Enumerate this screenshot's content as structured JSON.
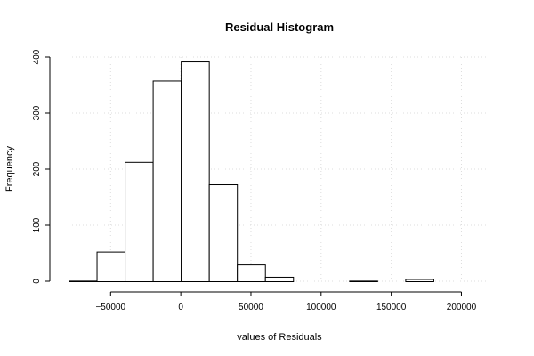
{
  "chart_data": {
    "type": "bar",
    "title": "Residual Histogram",
    "xlabel": "values of Residuals",
    "ylabel": "Frequency",
    "bin_edges": [
      -80000,
      -60000,
      -40000,
      -20000,
      0,
      20000,
      40000,
      60000,
      80000,
      100000,
      120000,
      140000,
      160000,
      180000,
      200000,
      220000
    ],
    "values": [
      1,
      53,
      213,
      358,
      392,
      173,
      30,
      8,
      0,
      0,
      1,
      0,
      4,
      0,
      0
    ],
    "xlim": [
      -80000,
      220000
    ],
    "ylim": [
      0,
      400
    ],
    "x_ticks": [
      -50000,
      0,
      50000,
      100000,
      150000,
      200000
    ],
    "x_tick_labels": [
      "−50000",
      "0",
      "50000",
      "100000",
      "150000",
      "200000"
    ],
    "y_ticks": [
      0,
      100,
      200,
      300,
      400
    ],
    "y_tick_labels": [
      "0",
      "100",
      "200",
      "300",
      "400"
    ],
    "grid": true,
    "colors": {
      "bar_fill": "#ffffff",
      "bar_stroke": "#000000",
      "grid": "#dddddd"
    }
  }
}
